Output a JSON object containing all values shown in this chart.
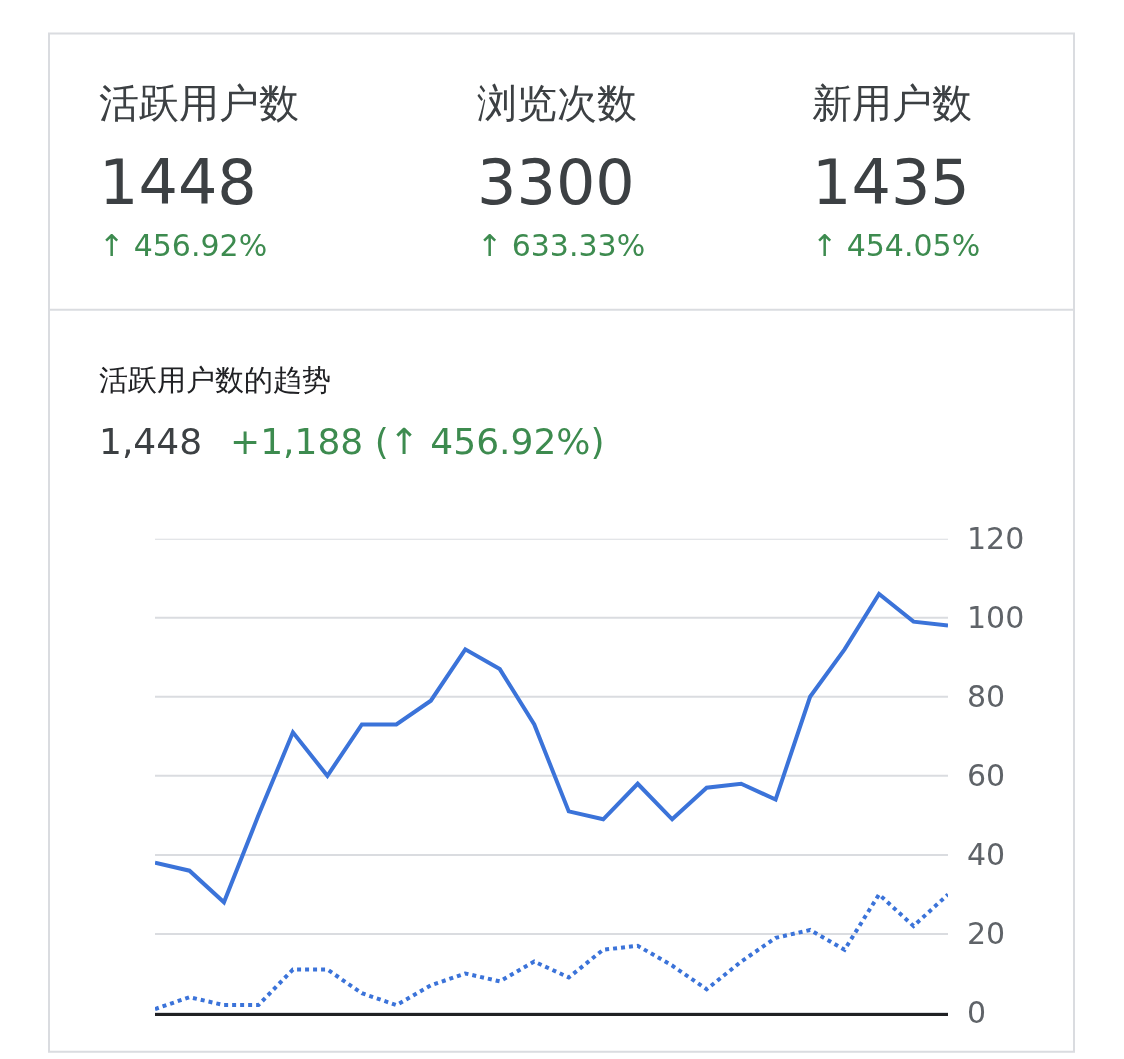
{
  "chart_data": {
    "type": "line",
    "title": "活跃用户数的趋势",
    "subtitle": "1,448",
    "annotations": [
      "活跃用户数",
      "1448",
      "↑ 456.92%",
      "浏览次数",
      "3300",
      "↑ 633.33%",
      "新用户数",
      "1435",
      "↑ 454.05%",
      "+1,188 (↑ 456.92%)"
    ],
    "categories": [
      null,
      null,
      null,
      null,
      null,
      null,
      null,
      null,
      null,
      null,
      null,
      null,
      null,
      null,
      null,
      null,
      null,
      null,
      null,
      null,
      null,
      null,
      null,
      null
    ],
    "series": [
      {
        "color": "#3b73d9",
        "line_style": "solid",
        "values": [
          38,
          36,
          28,
          50,
          71,
          60,
          73,
          73,
          79,
          92,
          87,
          73,
          51,
          49,
          58,
          49,
          57,
          58,
          54,
          80,
          92,
          106,
          99,
          98
        ]
      },
      {
        "color": "#3b73d9",
        "line_style": "dotted",
        "values": [
          1,
          4,
          2,
          2,
          11,
          11,
          5,
          2,
          7,
          10,
          8,
          13,
          9,
          16,
          17,
          12,
          6,
          13,
          19,
          21,
          16,
          30,
          22,
          30
        ]
      }
    ],
    "ylim": [
      0,
      120
    ],
    "yticks": [
      0,
      20,
      40,
      60,
      80,
      100,
      120
    ],
    "grid": "y",
    "legend": false,
    "marker": "none"
  }
}
